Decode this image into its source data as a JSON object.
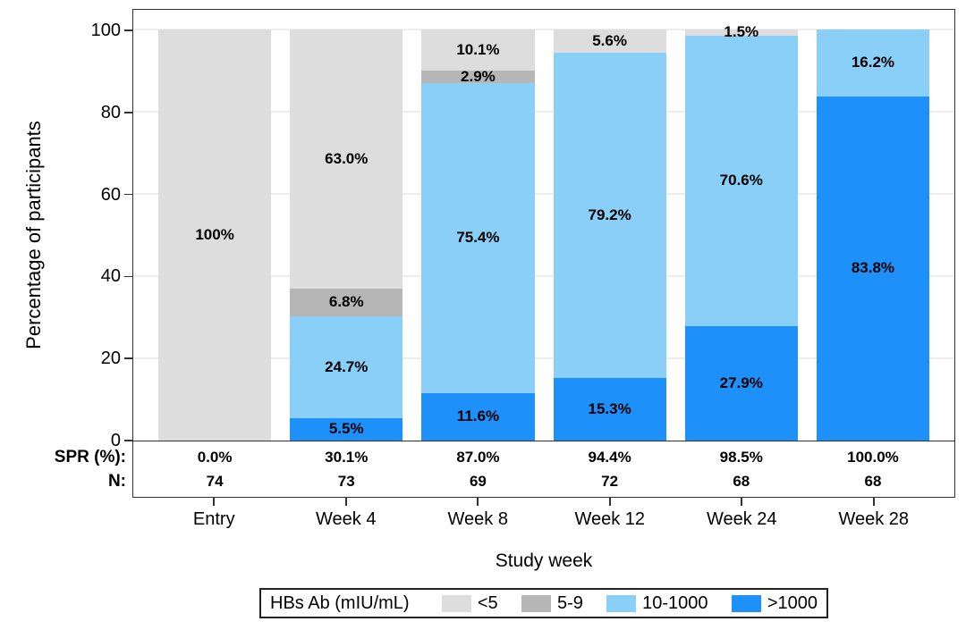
{
  "chart_data": {
    "type": "bar",
    "variant": "stacked-percentage-columns",
    "title": "",
    "ylabel": "Percentage of participants",
    "xlabel": "Study week",
    "ylim": [
      0,
      100
    ],
    "yticks": [
      0,
      20,
      40,
      60,
      80,
      100
    ],
    "grid": "horizontal-light",
    "categories": [
      "Entry",
      "Week 4",
      "Week 8",
      "Week 12",
      "Week 24",
      "Week 28"
    ],
    "legend_title": "HBs Ab (mIU/mL)",
    "legend_position": "bottom-boxed",
    "series": [
      {
        "name": "<5",
        "color": "#DDDDDD",
        "values": [
          100,
          63.0,
          10.1,
          5.6,
          1.5,
          0
        ],
        "labels": [
          "100%",
          "63.0%",
          "10.1%",
          "5.6%",
          "1.5%",
          ""
        ]
      },
      {
        "name": "5-9",
        "color": "#B6B6B6",
        "values": [
          0,
          6.8,
          2.9,
          0,
          0,
          0
        ],
        "labels": [
          "",
          "6.8%",
          "2.9%",
          "",
          "",
          ""
        ]
      },
      {
        "name": "10-1000",
        "color": "#8ACFF7",
        "values": [
          0,
          24.7,
          75.4,
          79.2,
          70.6,
          16.2
        ],
        "labels": [
          "",
          "24.7%",
          "75.4%",
          "79.2%",
          "70.6%",
          "16.2%"
        ]
      },
      {
        "name": ">1000",
        "color": "#1E90FA",
        "values": [
          0,
          5.5,
          11.6,
          15.3,
          27.9,
          83.8
        ],
        "labels": [
          "",
          "5.5%",
          "11.6%",
          "15.3%",
          "27.9%",
          "83.8%"
        ]
      }
    ],
    "stack_order": "first-series-on-top",
    "stat_rows": [
      {
        "label": "SPR (%):",
        "values": [
          "0.0%",
          "30.1%",
          "87.0%",
          "94.4%",
          "98.5%",
          "100.0%"
        ]
      },
      {
        "label": "N:",
        "values": [
          "74",
          "73",
          "69",
          "72",
          "68",
          "68"
        ]
      }
    ],
    "colors": {
      "gridline": "#EDEDED",
      "frame": "#333333",
      "label_text": "#000000"
    }
  }
}
